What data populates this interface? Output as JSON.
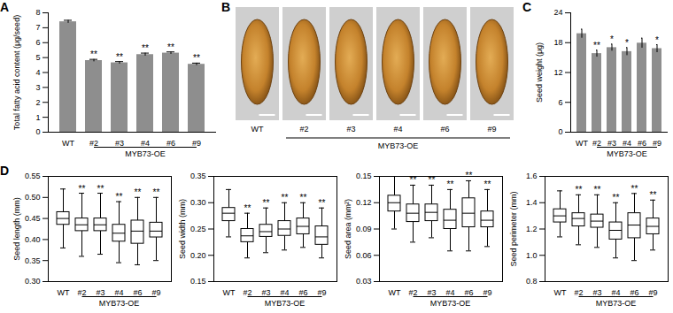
{
  "chart_data": [
    {
      "type": "bar",
      "title": "A",
      "y_label": "Total fatty acid content (μg/seed)",
      "categories": [
        "WT",
        "#2",
        "#3",
        "#4",
        "#6",
        "#9"
      ],
      "values": [
        7.4,
        4.8,
        4.65,
        5.2,
        5.3,
        4.55
      ],
      "errors": [
        0.1,
        0.08,
        0.08,
        0.1,
        0.08,
        0.08
      ],
      "significance": [
        null,
        "**",
        "**",
        "**",
        "**",
        "**"
      ],
      "annotations": [
        "MYB73-OE"
      ],
      "color": "#8e8e8e",
      "ylim": [
        0,
        8
      ],
      "yticks": [
        0,
        1,
        2,
        3,
        4,
        5,
        6,
        7,
        8
      ]
    },
    {
      "type": "image",
      "title": "B",
      "categories": [
        "WT",
        "#2",
        "#3",
        "#4",
        "#6",
        "#9"
      ],
      "annotations": [
        "MYB73-OE"
      ],
      "color": "#c4822c"
    },
    {
      "type": "bar",
      "title": "C",
      "y_label": "Seed weight (μg)",
      "categories": [
        "WT",
        "#2",
        "#3",
        "#4",
        "#6",
        "#9"
      ],
      "values": [
        19.8,
        15.8,
        17.0,
        16.2,
        17.9,
        16.8
      ],
      "errors": [
        0.9,
        0.7,
        0.7,
        0.8,
        1.0,
        0.8
      ],
      "significance": [
        null,
        "**",
        "*",
        "*",
        null,
        "*"
      ],
      "annotations": [
        "MYB73-OE"
      ],
      "color": "#8e8e8e",
      "ylim": [
        0,
        24
      ],
      "yticks": [
        0,
        6,
        12,
        18,
        24
      ]
    },
    {
      "type": "box",
      "title": "D",
      "y_label": "Seed length (mm)",
      "categories": [
        "WT",
        "#2",
        "#3",
        "#4",
        "#6",
        "#9"
      ],
      "min": [
        0.38,
        0.36,
        0.365,
        0.345,
        0.34,
        0.35
      ],
      "q1": [
        0.435,
        0.42,
        0.42,
        0.395,
        0.39,
        0.405
      ],
      "median": [
        0.45,
        0.435,
        0.435,
        0.415,
        0.42,
        0.42
      ],
      "q3": [
        0.465,
        0.45,
        0.45,
        0.435,
        0.445,
        0.44
      ],
      "max": [
        0.52,
        0.51,
        0.51,
        0.49,
        0.5,
        0.5
      ],
      "significance": [
        null,
        "**",
        "**",
        "**",
        "**",
        "**"
      ],
      "annotations": [
        "MYB73-OE"
      ],
      "color": "#000000",
      "ylim": [
        0.3,
        0.55
      ],
      "yticks": [
        {
          "value": 0.3,
          "label": "0.30"
        },
        0.35,
        {
          "value": 0.4,
          "label": "0.40"
        },
        0.45,
        {
          "value": 0.5,
          "label": "0.50"
        },
        0.55
      ]
    },
    {
      "type": "box",
      "y_label": "Seed width (mm)",
      "categories": [
        "WT",
        "#2",
        "#3",
        "#4",
        "#6",
        "#9"
      ],
      "min": [
        0.235,
        0.195,
        0.205,
        0.21,
        0.215,
        0.195
      ],
      "q1": [
        0.265,
        0.225,
        0.235,
        0.237,
        0.24,
        0.22
      ],
      "median": [
        0.28,
        0.237,
        0.245,
        0.25,
        0.255,
        0.235
      ],
      "q3": [
        0.29,
        0.25,
        0.258,
        0.265,
        0.27,
        0.255
      ],
      "max": [
        0.325,
        0.28,
        0.29,
        0.3,
        0.3,
        0.29
      ],
      "significance": [
        null,
        "**",
        "**",
        "**",
        "**",
        "**"
      ],
      "annotations": [
        "MYB73-OE"
      ],
      "color": "#000000",
      "ylim": [
        0.15,
        0.35
      ],
      "yticks": [
        0.15,
        {
          "value": 0.2,
          "label": "0.20"
        },
        0.25,
        {
          "value": 0.3,
          "label": "0.30"
        },
        0.35
      ]
    },
    {
      "type": "box",
      "y_label": "Seed area (mm²)",
      "categories": [
        "WT",
        "#2",
        "#3",
        "#4",
        "#6",
        "#9"
      ],
      "min": [
        0.09,
        0.075,
        0.08,
        0.065,
        0.065,
        0.07
      ],
      "q1": [
        0.11,
        0.098,
        0.099,
        0.09,
        0.092,
        0.092
      ],
      "median": [
        0.12,
        0.108,
        0.109,
        0.1,
        0.108,
        0.1
      ],
      "q3": [
        0.128,
        0.118,
        0.118,
        0.112,
        0.125,
        0.11
      ],
      "max": [
        0.15,
        0.14,
        0.14,
        0.135,
        0.145,
        0.135
      ],
      "significance": [
        null,
        "**",
        "**",
        "**",
        "**",
        "**"
      ],
      "annotations": [
        "MYB73-OE"
      ],
      "color": "#000000",
      "ylim": [
        0.03,
        0.15
      ],
      "yticks": [
        0.03,
        0.06,
        0.09,
        0.12,
        {
          "value": 0.15,
          "label": "0.15"
        }
      ]
    },
    {
      "type": "box",
      "y_label": "Seed perimeter (mm)",
      "categories": [
        "WT",
        "#2",
        "#3",
        "#4",
        "#6",
        "#9"
      ],
      "min": [
        1.14,
        1.08,
        1.06,
        0.98,
        0.96,
        1.04
      ],
      "q1": [
        1.25,
        1.22,
        1.21,
        1.12,
        1.13,
        1.16
      ],
      "median": [
        1.3,
        1.28,
        1.26,
        1.19,
        1.23,
        1.22
      ],
      "q3": [
        1.35,
        1.32,
        1.31,
        1.25,
        1.32,
        1.28
      ],
      "max": [
        1.49,
        1.46,
        1.46,
        1.4,
        1.47,
        1.42
      ],
      "significance": [
        null,
        "**",
        "**",
        "**",
        "**",
        "**"
      ],
      "annotations": [
        "MYB73-OE"
      ],
      "color": "#000000",
      "ylim": [
        0.8,
        1.6
      ],
      "yticks": [
        0.8,
        {
          "value": 1.0,
          "label": "1.0"
        },
        1.2,
        1.4,
        1.6
      ]
    }
  ]
}
